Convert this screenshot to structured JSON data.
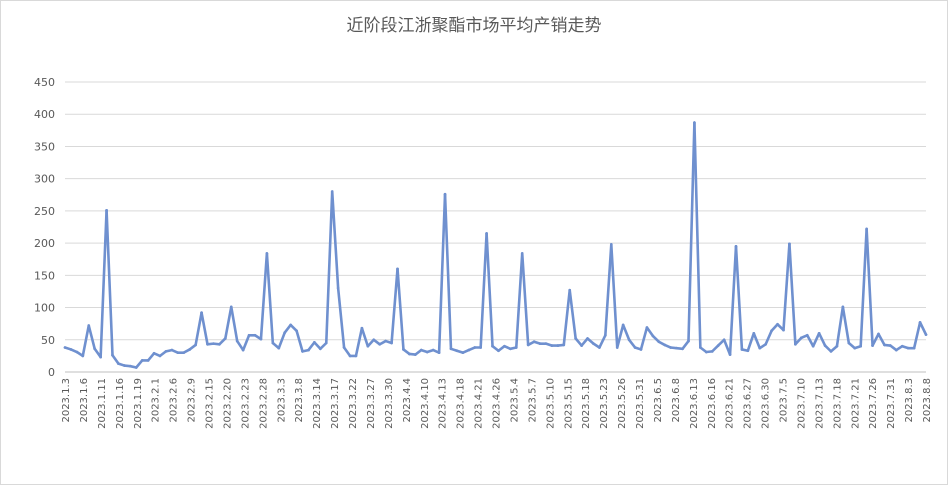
{
  "chart_data": {
    "type": "line",
    "title": "近阶段江浙聚酯市场平均产销走势",
    "xlabel": "",
    "ylabel": "",
    "ylim": [
      0,
      450
    ],
    "yticks": [
      0,
      50,
      100,
      150,
      200,
      250,
      300,
      350,
      400,
      450
    ],
    "grid": "horizontal",
    "legend": "none",
    "color": "#6f90cf",
    "tick_labels": [
      "2023.1.3",
      "2023.1.6",
      "2023.1.11",
      "2023.1.16",
      "2023.1.19",
      "2023.2.1",
      "2023.2.6",
      "2023.2.9",
      "2023.2.15",
      "2023.2.20",
      "2023.2.23",
      "2023.2.28",
      "2023.3.3",
      "2023.3.8",
      "2023.3.14",
      "2023.3.17",
      "2023.3.22",
      "2023.3.27",
      "2023.3.30",
      "2023.4.4",
      "2023.4.10",
      "2023.4.13",
      "2023.4.18",
      "2023.4.21",
      "2023.4.26",
      "2023.5.4",
      "2023.5.7",
      "2023.5.10",
      "2023.5.15",
      "2023.5.18",
      "2023.5.23",
      "2023.5.26",
      "2023.5.31",
      "2023.6.5",
      "2023.6.8",
      "2023.6.13",
      "2023.6.16",
      "2023.6.21",
      "2023.6.27",
      "2023.6.30",
      "2023.7.5",
      "2023.7.10",
      "2023.7.13",
      "2023.7.18",
      "2023.7.21",
      "2023.7.26",
      "2023.7.31",
      "2023.8.3",
      "2023.8.8"
    ],
    "values": [
      38,
      35,
      31,
      25,
      72,
      36,
      23,
      251,
      26,
      13,
      10,
      9,
      7,
      18,
      18,
      29,
      25,
      32,
      34,
      30,
      30,
      35,
      42,
      92,
      43,
      44,
      43,
      52,
      101,
      48,
      34,
      57,
      57,
      51,
      184,
      45,
      37,
      61,
      73,
      64,
      32,
      34,
      46,
      36,
      45,
      280,
      130,
      38,
      25,
      25,
      68,
      40,
      50,
      43,
      48,
      45,
      160,
      35,
      28,
      27,
      34,
      31,
      34,
      30,
      276,
      36,
      33,
      30,
      34,
      38,
      38,
      215,
      40,
      33,
      40,
      36,
      38,
      184,
      42,
      47,
      44,
      44,
      41,
      41,
      42,
      127,
      52,
      41,
      52,
      44,
      38,
      57,
      198,
      38,
      73,
      50,
      38,
      35,
      69,
      56,
      47,
      42,
      38,
      37,
      36,
      48,
      387,
      38,
      31,
      32,
      41,
      50,
      27,
      195,
      35,
      33,
      60,
      37,
      43,
      64,
      74,
      65,
      199,
      43,
      53,
      57,
      40,
      60,
      41,
      32,
      40,
      101,
      45,
      37,
      40,
      222,
      41,
      59,
      42,
      41,
      34,
      40,
      37,
      37,
      77,
      58
    ]
  }
}
